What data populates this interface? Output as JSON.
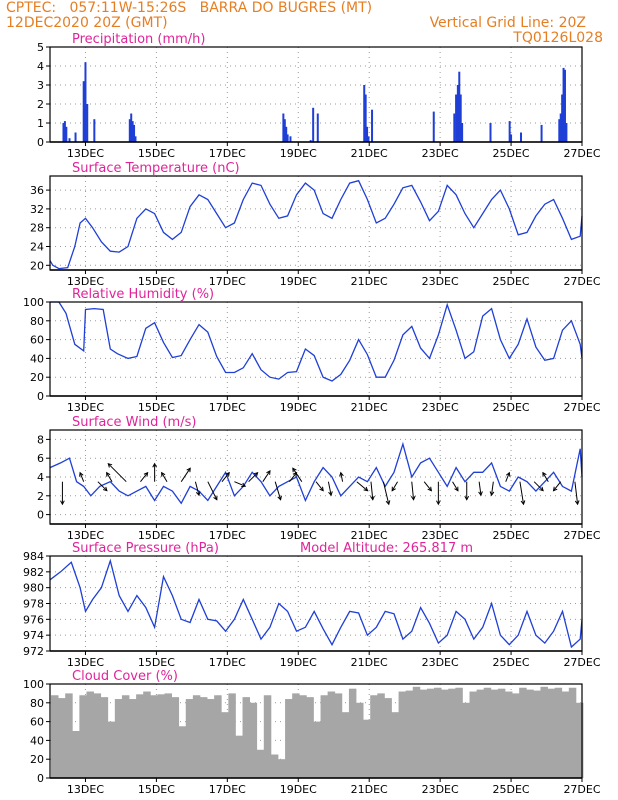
{
  "header": {
    "line1_left": "CPTEC:   057:11W-15:26S   BARRA DO BUGRES (MT)",
    "line2_left": "12DEC2020 20Z (GMT)",
    "line2_right": "Vertical Grid Line: 20Z",
    "line3_right": "TQ0126L028"
  },
  "colors": {
    "header": "#e67e22",
    "title": "#e0249a",
    "series": "#1f3fd6",
    "arrow": "#000000",
    "cloud": "#a6a6a6"
  },
  "chart_data": [
    {
      "id": "precip",
      "type": "bar",
      "title": "Precipitation (mm/h)",
      "ylim": [
        0,
        5
      ],
      "yticks": [
        0,
        1,
        2,
        3,
        4,
        5
      ],
      "xlim": [
        0,
        15
      ],
      "xticks": [
        1,
        3,
        5,
        7,
        9,
        11,
        13,
        15
      ],
      "xtick_labels": [
        "13DEC",
        "15DEC",
        "17DEC",
        "19DEC",
        "21DEC",
        "23DEC",
        "25DEC",
        "27DEC"
      ],
      "grid": true,
      "x": [
        0.38,
        0.42,
        0.46,
        0.55,
        0.72,
        0.95,
        1.0,
        1.05,
        1.25,
        2.25,
        2.29,
        2.33,
        2.37,
        2.41,
        6.58,
        6.62,
        6.66,
        6.7,
        6.78,
        7.35,
        7.42,
        7.55,
        8.86,
        8.9,
        8.94,
        8.98,
        9.08,
        10.82,
        11.4,
        11.45,
        11.5,
        11.54,
        11.58,
        11.62,
        12.42,
        12.96,
        13.0,
        13.28,
        13.86,
        14.36,
        14.4,
        14.44,
        14.48,
        14.52,
        14.56
      ],
      "values": [
        1.0,
        1.1,
        0.8,
        0.2,
        0.5,
        3.2,
        4.2,
        2.0,
        1.2,
        1.2,
        1.5,
        1.1,
        0.9,
        0.3,
        1.5,
        1.2,
        0.8,
        0.4,
        0.3,
        0.1,
        1.8,
        1.5,
        3.0,
        2.5,
        0.8,
        0.3,
        1.7,
        1.6,
        1.5,
        2.5,
        3.0,
        3.7,
        2.5,
        1.0,
        1.0,
        1.1,
        0.4,
        0.5,
        0.9,
        1.2,
        1.5,
        2.5,
        3.9,
        3.8,
        1.0
      ]
    },
    {
      "id": "temp",
      "type": "line",
      "title": "Surface Temperature (nC)",
      "ylim": [
        19,
        39
      ],
      "yticks": [
        20,
        24,
        28,
        32,
        36
      ],
      "xlim": [
        0,
        15
      ],
      "xticks": [
        1,
        3,
        5,
        7,
        9,
        11,
        13,
        15
      ],
      "xtick_labels": [
        "13DEC",
        "15DEC",
        "17DEC",
        "19DEC",
        "21DEC",
        "23DEC",
        "25DEC",
        "27DEC"
      ],
      "grid": true,
      "x": [
        0,
        0.08,
        0.25,
        0.5,
        0.7,
        0.85,
        1.0,
        1.2,
        1.45,
        1.7,
        1.95,
        2.2,
        2.45,
        2.7,
        2.95,
        3.2,
        3.45,
        3.7,
        3.95,
        4.2,
        4.45,
        4.7,
        4.95,
        5.2,
        5.45,
        5.7,
        5.95,
        6.2,
        6.45,
        6.7,
        6.95,
        7.2,
        7.45,
        7.7,
        7.95,
        8.2,
        8.45,
        8.7,
        8.95,
        9.2,
        9.45,
        9.7,
        9.95,
        10.2,
        10.45,
        10.7,
        10.95,
        11.2,
        11.45,
        11.7,
        11.95,
        12.2,
        12.45,
        12.7,
        12.95,
        13.2,
        13.45,
        13.7,
        13.95,
        14.2,
        14.45,
        14.7,
        14.95,
        15.0
      ],
      "values": [
        21,
        20,
        19.3,
        19.5,
        24,
        29,
        30,
        28,
        25,
        23,
        22.8,
        24,
        30,
        32,
        31,
        27,
        25.5,
        27,
        32.5,
        35,
        34,
        31,
        28,
        29,
        34,
        37.5,
        37,
        33,
        30,
        30.5,
        35,
        37.5,
        36,
        31,
        30,
        34,
        37.5,
        38,
        34,
        29,
        30,
        33,
        36.5,
        37,
        33.5,
        29.5,
        31.5,
        37,
        35,
        31,
        28,
        31,
        34,
        36,
        32,
        26.5,
        27,
        30.5,
        33,
        34,
        30,
        25.5,
        26.2,
        30.5
      ],
      "lower_y": [
        0,
        29
      ]
    },
    {
      "id": "rh",
      "type": "line",
      "title": "Relative Humidity (%)",
      "ylim": [
        0,
        100
      ],
      "yticks": [
        0,
        20,
        40,
        60,
        80,
        100
      ],
      "xlim": [
        0,
        15
      ],
      "xticks": [
        1,
        3,
        5,
        7,
        9,
        11,
        13,
        15
      ],
      "xtick_labels": [
        "13DEC",
        "15DEC",
        "17DEC",
        "19DEC",
        "21DEC",
        "23DEC",
        "25DEC",
        "27DEC"
      ],
      "grid": true,
      "x": [
        0,
        0.25,
        0.45,
        0.7,
        0.95,
        1.0,
        1.25,
        1.5,
        1.7,
        1.9,
        2.2,
        2.45,
        2.7,
        2.95,
        3.2,
        3.45,
        3.7,
        3.95,
        4.2,
        4.45,
        4.7,
        4.95,
        5.2,
        5.45,
        5.7,
        5.95,
        6.2,
        6.45,
        6.7,
        6.95,
        7.2,
        7.45,
        7.7,
        7.95,
        8.2,
        8.45,
        8.7,
        8.95,
        9.2,
        9.45,
        9.7,
        9.95,
        10.2,
        10.45,
        10.7,
        10.95,
        11.2,
        11.45,
        11.7,
        11.95,
        12.2,
        12.45,
        12.7,
        12.95,
        13.2,
        13.45,
        13.7,
        13.95,
        14.2,
        14.45,
        14.7,
        14.95,
        15.0
      ],
      "values": [
        100,
        100,
        88,
        55,
        48,
        92,
        93,
        92,
        50,
        45,
        40,
        42,
        72,
        78,
        57,
        41,
        43,
        60,
        76,
        68,
        42,
        25,
        25,
        30,
        45,
        28,
        20,
        18,
        25,
        26,
        50,
        43,
        20,
        16,
        23,
        38,
        60,
        44,
        20,
        20,
        38,
        65,
        74,
        51,
        40,
        65,
        97,
        70,
        40,
        47,
        85,
        93,
        60,
        40,
        55,
        82,
        52,
        38,
        40,
        70,
        80,
        55,
        40
      ],
      "lower_y": [
        0,
        48
      ]
    },
    {
      "id": "wind",
      "type": "line",
      "title": "Surface Wind (m/s)",
      "ylim": [
        -1,
        9
      ],
      "yticks": [
        0,
        2,
        4,
        6,
        8
      ],
      "xlim": [
        0,
        15
      ],
      "xticks": [
        1,
        3,
        5,
        7,
        9,
        11,
        13,
        15
      ],
      "xtick_labels": [
        "13DEC",
        "15DEC",
        "17DEC",
        "19DEC",
        "21DEC",
        "23DEC",
        "25DEC",
        "27DEC"
      ],
      "grid": true,
      "x": [
        0,
        0.3,
        0.55,
        0.75,
        0.95,
        1.15,
        1.4,
        1.7,
        1.95,
        2.2,
        2.45,
        2.7,
        2.95,
        3.2,
        3.45,
        3.7,
        3.95,
        4.2,
        4.45,
        4.7,
        4.95,
        5.2,
        5.45,
        5.7,
        5.95,
        6.2,
        6.45,
        6.7,
        6.95,
        7.2,
        7.45,
        7.7,
        7.95,
        8.2,
        8.45,
        8.7,
        8.95,
        9.2,
        9.45,
        9.7,
        9.95,
        10.2,
        10.45,
        10.7,
        10.95,
        11.2,
        11.45,
        11.7,
        11.95,
        12.2,
        12.45,
        12.7,
        12.95,
        13.2,
        13.45,
        13.7,
        13.95,
        14.2,
        14.45,
        14.7,
        14.95,
        15.0
      ],
      "values": [
        5,
        5.5,
        6,
        3.5,
        3,
        2,
        3,
        3.5,
        2.5,
        2.0,
        2.5,
        3,
        1.5,
        3,
        2.5,
        1.2,
        3,
        2.5,
        1.5,
        3,
        4.5,
        2,
        3,
        4.5,
        3.5,
        2,
        3,
        3.5,
        4,
        1.5,
        3.5,
        5,
        4,
        2,
        3,
        4,
        3.5,
        5,
        3,
        4.5,
        7.5,
        4,
        5.5,
        6,
        4.5,
        3,
        5,
        3.5,
        4.5,
        4.5,
        5.5,
        3,
        2.5,
        4,
        3.5,
        2.5,
        3.5,
        4.5,
        3,
        2.5,
        7,
        4
      ],
      "arrows_x": [
        0.35,
        0.95,
        1.35,
        1.75,
        2.15,
        2.55,
        2.95,
        3.3,
        3.7,
        4.1,
        4.45,
        4.85,
        5.2,
        5.6,
        6.0,
        6.35,
        6.75,
        7.1,
        7.5,
        7.85,
        8.25,
        8.65,
        9.05,
        9.4,
        9.8,
        10.2,
        10.55,
        10.95,
        11.35,
        11.75,
        12.1,
        12.5,
        12.85,
        13.25,
        13.65,
        14.05,
        14.4,
        14.8
      ],
      "arrows_u": [
        0,
        -0.4,
        1.0,
        -0.6,
        -2.0,
        0.8,
        0.0,
        -0.6,
        1.0,
        0.4,
        1.0,
        0.8,
        1.2,
        1.0,
        0.8,
        0.6,
        0.8,
        -1.0,
        0.8,
        0.3,
        -0.2,
        1.2,
        0.2,
        0.6,
        -0.6,
        0.2,
        0.8,
        0.0,
        0.6,
        0.0,
        0.2,
        -0.2,
        0.4,
        0.4,
        1.0,
        -0.6,
        -0.8,
        0.3
      ],
      "arrows_v": [
        -2.5,
        1.0,
        -1.0,
        1.0,
        2.0,
        1.0,
        2.0,
        1.0,
        1.5,
        -1.5,
        -2.0,
        1.0,
        -0.5,
        1.0,
        1.2,
        -2.0,
        1.0,
        1.5,
        -1.0,
        -1.5,
        1.0,
        -1.0,
        -2.0,
        -2.5,
        -1.0,
        -2.0,
        -1.0,
        -2.5,
        -1.0,
        -2.0,
        -1.5,
        -1.5,
        1.0,
        -2.5,
        -1.0,
        1.0,
        -1.0,
        -2.5
      ]
    },
    {
      "id": "pressure",
      "type": "line",
      "title": "Surface Pressure (hPa)",
      "subtitle": "Model Altitude: 265.817 m",
      "ylim": [
        972,
        984
      ],
      "yticks": [
        972,
        974,
        976,
        978,
        980,
        982,
        984
      ],
      "xlim": [
        0,
        15
      ],
      "xticks": [
        1,
        3,
        5,
        7,
        9,
        11,
        13,
        15
      ],
      "xtick_labels": [
        "13DEC",
        "15DEC",
        "17DEC",
        "19DEC",
        "21DEC",
        "23DEC",
        "25DEC",
        "27DEC"
      ],
      "grid": true,
      "x": [
        0,
        0.3,
        0.6,
        0.85,
        1.0,
        1.2,
        1.45,
        1.7,
        1.95,
        2.2,
        2.45,
        2.7,
        2.95,
        3.2,
        3.45,
        3.7,
        3.95,
        4.2,
        4.45,
        4.7,
        4.95,
        5.2,
        5.45,
        5.7,
        5.95,
        6.2,
        6.45,
        6.7,
        6.95,
        7.2,
        7.45,
        7.7,
        7.95,
        8.2,
        8.45,
        8.7,
        8.95,
        9.2,
        9.45,
        9.7,
        9.95,
        10.2,
        10.45,
        10.7,
        10.95,
        11.2,
        11.45,
        11.7,
        11.95,
        12.2,
        12.45,
        12.7,
        12.95,
        13.2,
        13.45,
        13.7,
        13.95,
        14.2,
        14.45,
        14.7,
        14.95,
        15.0
      ],
      "values": [
        981,
        982,
        983.2,
        980,
        977,
        978.5,
        980,
        983.4,
        979,
        977,
        979,
        977.5,
        975,
        981.4,
        979,
        976,
        975.6,
        978.5,
        976,
        975.8,
        974.5,
        976,
        978.5,
        976,
        973.5,
        975,
        978,
        977,
        974.5,
        975,
        977,
        974.8,
        972.8,
        975,
        977,
        976.8,
        974,
        975,
        977,
        976.7,
        973.5,
        974.5,
        977.5,
        975.5,
        973,
        974,
        977,
        976,
        973.5,
        975,
        978,
        974,
        972.8,
        974,
        977,
        974,
        973,
        974.5,
        977,
        972.5,
        973.5,
        976
      ],
      "lower_y": [
        0,
        976
      ]
    },
    {
      "id": "cloud",
      "type": "area",
      "title": "Cloud Cover (%)",
      "ylim": [
        0,
        100
      ],
      "yticks": [
        0,
        20,
        40,
        60,
        80,
        100
      ],
      "xlim": [
        0,
        15
      ],
      "xticks": [
        1,
        3,
        5,
        7,
        9,
        11,
        13,
        15
      ],
      "xtick_labels": [
        "13DEC",
        "15DEC",
        "17DEC",
        "19DEC",
        "21DEC",
        "23DEC",
        "25DEC",
        "27DEC"
      ],
      "grid": true,
      "x": [
        0,
        0.2,
        0.4,
        0.6,
        0.8,
        1.0,
        1.2,
        1.4,
        1.6,
        1.8,
        2.0,
        2.2,
        2.4,
        2.6,
        2.8,
        3.0,
        3.2,
        3.4,
        3.6,
        3.8,
        4.0,
        4.2,
        4.4,
        4.6,
        4.8,
        5.0,
        5.2,
        5.4,
        5.6,
        5.8,
        6.0,
        6.2,
        6.4,
        6.6,
        6.8,
        7.0,
        7.2,
        7.4,
        7.6,
        7.8,
        8.0,
        8.2,
        8.4,
        8.6,
        8.8,
        9.0,
        9.2,
        9.4,
        9.6,
        9.8,
        10.0,
        10.2,
        10.4,
        10.6,
        10.8,
        11.0,
        11.2,
        11.4,
        11.6,
        11.8,
        12.0,
        12.2,
        12.4,
        12.6,
        12.8,
        13.0,
        13.2,
        13.4,
        13.6,
        13.8,
        14.0,
        14.2,
        14.4,
        14.6,
        14.8,
        15.0
      ],
      "values": [
        88,
        85,
        90,
        50,
        88,
        92,
        90,
        86,
        60,
        84,
        88,
        84,
        89,
        92,
        88,
        89,
        90,
        86,
        55,
        84,
        88,
        86,
        84,
        88,
        70,
        90,
        45,
        86,
        80,
        30,
        88,
        25,
        20,
        84,
        90,
        88,
        86,
        60,
        88,
        92,
        90,
        70,
        95,
        80,
        62,
        88,
        90,
        85,
        70,
        92,
        93,
        97,
        94,
        95,
        96,
        94,
        95,
        96,
        80,
        92,
        94,
        96,
        94,
        95,
        92,
        90,
        96,
        94,
        93,
        97,
        95,
        96,
        92,
        96,
        80,
        82
      ]
    }
  ]
}
